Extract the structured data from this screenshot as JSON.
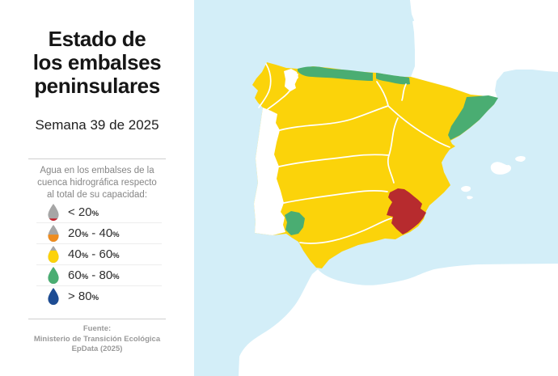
{
  "panel": {
    "title_lines": [
      "Estado de",
      "los embalses",
      "peninsulares"
    ],
    "subtitle": "Semana 39 de 2025",
    "legend_intro_lines": [
      "Agua en los embalses de la",
      "cuenca hidrográfica respecto",
      "al total de su capacidad:"
    ],
    "legend_icon": {
      "empty_color": "#a6a6a6"
    },
    "legend": [
      {
        "icon": "droplet-under-20",
        "label": "< 20%",
        "fill_color": "#c8232e",
        "fill_pct": 13
      },
      {
        "icon": "droplet-20-40",
        "label": "20% - 40%",
        "fill_color": "#ee8c1f",
        "fill_pct": 42
      },
      {
        "icon": "droplet-40-60",
        "label": "40% - 60%",
        "fill_color": "#fcd20a",
        "fill_pct": 72
      },
      {
        "icon": "droplet-60-80",
        "label": "60% - 80%",
        "fill_color": "#4aad72",
        "fill_pct": 100
      },
      {
        "icon": "droplet-over-80",
        "label": "> 80%",
        "fill_color": "#1d4c93",
        "fill_pct": 100
      }
    ],
    "source_lines": [
      "Fuente:",
      "Ministerio de Transición Ecológica",
      "EpData (2025)"
    ]
  },
  "map": {
    "palette": {
      "sea": "#d3eef8",
      "neutral_land": "#ffffff",
      "pct_40_60": "#fbd30a",
      "pct_60_80": "#4aad72",
      "pct_under_20": "#b72b2e",
      "border": "#ffffff"
    },
    "regions": [
      {
        "area": "most-peninsular-basins",
        "status": "40% - 60%",
        "color": "#fbd30a"
      },
      {
        "area": "cantabrian-coast-west-strip",
        "status": "60% - 80%",
        "color": "#4aad72"
      },
      {
        "area": "cantabrian-coast-east-strip",
        "status": "60% - 80%",
        "color": "#4aad72"
      },
      {
        "area": "northeast-coastal-basins",
        "status": "60% - 80%",
        "color": "#4aad72"
      },
      {
        "area": "small-southwest-basin",
        "status": "60% - 80%",
        "color": "#4aad72"
      },
      {
        "area": "southeast-basin",
        "status": "< 20%",
        "color": "#b72b2e"
      },
      {
        "area": "portugal",
        "status": "no-data",
        "color": "#ffffff"
      },
      {
        "area": "france",
        "status": "no-data",
        "color": "#ffffff"
      },
      {
        "area": "north-africa",
        "status": "no-data",
        "color": "#ffffff"
      },
      {
        "area": "balearic-islands",
        "status": "no-data",
        "color": "#ffffff"
      }
    ]
  }
}
